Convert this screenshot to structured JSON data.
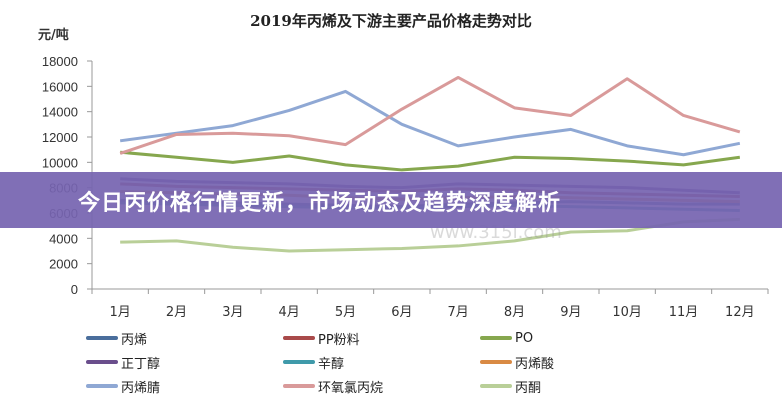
{
  "chart_data": {
    "type": "line",
    "title": "2019年丙烯及下游主要产品价格走势对比",
    "ylabel": "元/吨",
    "xlabel": "",
    "categories": [
      "1月",
      "2月",
      "3月",
      "4月",
      "5月",
      "6月",
      "7月",
      "8月",
      "9月",
      "10月",
      "11月",
      "12月"
    ],
    "ylim": [
      0,
      18000
    ],
    "yticks": [
      0,
      2000,
      4000,
      6000,
      8000,
      10000,
      12000,
      14000,
      16000,
      18000
    ],
    "grid": false,
    "legend_position": "bottom",
    "series": [
      {
        "name": "丙烯",
        "color": "#4a6e9c",
        "values": [
          7000,
          6900,
          6800,
          6700,
          6600,
          6500,
          6700,
          6800,
          6900,
          6800,
          6700,
          6700
        ]
      },
      {
        "name": "PP粉料",
        "color": "#a94a4a",
        "values": [
          8300,
          8100,
          8000,
          7900,
          7800,
          7700,
          7900,
          7800,
          7600,
          7500,
          7400,
          7300
        ]
      },
      {
        "name": "PO",
        "color": "#86a74e",
        "values": [
          10800,
          10400,
          10000,
          10500,
          9800,
          9400,
          9700,
          10400,
          10300,
          10100,
          9800,
          10400
        ]
      },
      {
        "name": "正丁醇",
        "color": "#6a4e8c",
        "values": [
          8700,
          8500,
          8400,
          8300,
          8100,
          8000,
          8300,
          8200,
          8100,
          8000,
          7800,
          7600
        ]
      },
      {
        "name": "辛醇",
        "color": "#3f9aaa",
        "values": [
          6800,
          6700,
          6600,
          6500,
          6400,
          6400,
          6500,
          6600,
          6500,
          6400,
          6300,
          6200
        ]
      },
      {
        "name": "丙烯酸",
        "color": "#d98a44",
        "values": [
          7700,
          7600,
          7500,
          7400,
          7200,
          7100,
          7200,
          7300,
          7200,
          7100,
          7000,
          6900
        ]
      },
      {
        "name": "丙烯腈",
        "color": "#8fa8d4",
        "values": [
          11700,
          12300,
          12900,
          14100,
          15600,
          13000,
          11300,
          12000,
          12600,
          11300,
          10600,
          11500
        ]
      },
      {
        "name": "环氧氯丙烷",
        "color": "#d99a9a",
        "values": [
          10700,
          12200,
          12300,
          12100,
          11400,
          14200,
          16700,
          14300,
          13700,
          16600,
          13700,
          12400
        ]
      },
      {
        "name": "丙酮",
        "color": "#b9cf98",
        "values": [
          3700,
          3800,
          3300,
          3000,
          3100,
          3200,
          3400,
          3800,
          4500,
          4600,
          5300,
          5500
        ]
      }
    ]
  },
  "banner": {
    "text": "今日丙价格行情更新，市场动态及趋势深度解析",
    "color": "#7664b0"
  },
  "watermark": "www.315i.com"
}
